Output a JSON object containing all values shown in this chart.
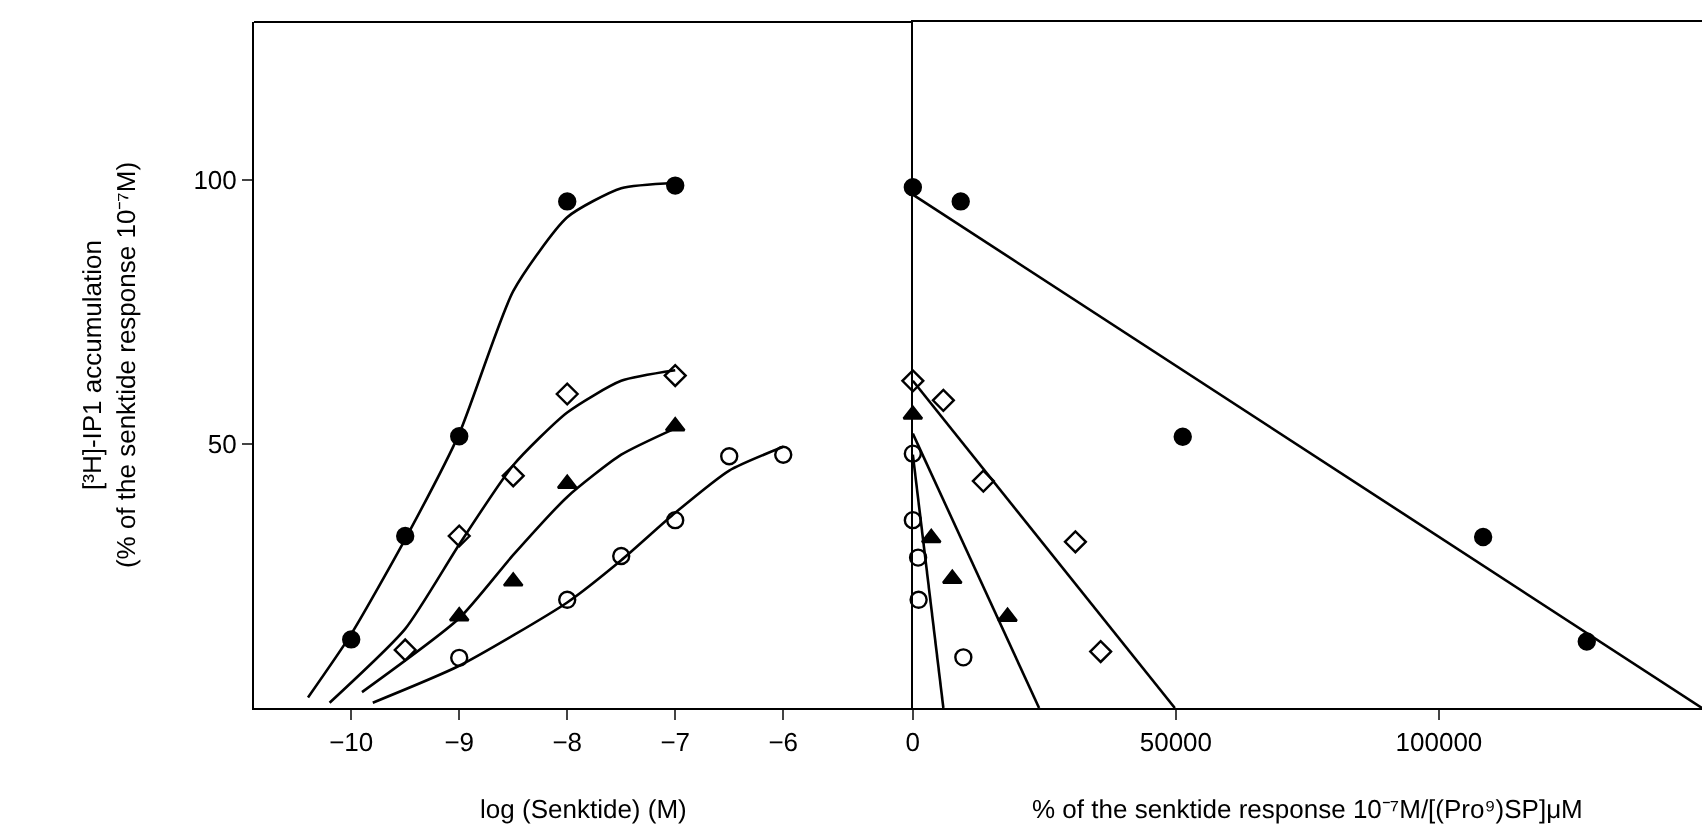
{
  "chart_data": [
    {
      "type": "line",
      "xlabel": "log (Senktide) (M)",
      "ylabel": "[³H]-IP1 accumulation\n(% of the senktide response 10⁻⁷M)",
      "xlim": [
        -10.9,
        -4.8
      ],
      "xticks": [
        -10,
        -9,
        -8,
        -7,
        -6
      ],
      "ylim": [
        0,
        130
      ],
      "yticks": [
        50,
        100
      ],
      "series": [
        {
          "type": "scatter",
          "marker": "circle",
          "color": "#000000",
          "x": [
            -10,
            -9.5,
            -9,
            -8,
            -7
          ],
          "values": [
            13,
            32.6,
            51.5,
            96,
            99
          ]
        },
        {
          "type": "scatter",
          "marker": "diamond",
          "color": "#ffffff",
          "x": [
            -9.5,
            -9,
            -8.5,
            -8,
            -7
          ],
          "values": [
            11,
            32.6,
            44,
            59.5,
            63
          ]
        },
        {
          "type": "scatter",
          "marker": "triangle",
          "color": "#000000",
          "x": [
            -9,
            -8.5,
            -8,
            -7
          ],
          "values": [
            17.4,
            24,
            42.5,
            53.4
          ]
        },
        {
          "type": "scatter",
          "marker": "circle",
          "color": "#ffffff",
          "x": [
            -9,
            -8,
            -7.5,
            -7,
            -6.5,
            -6
          ],
          "values": [
            9.5,
            20.5,
            28.8,
            35.6,
            47.7,
            48
          ]
        },
        {
          "color": "#000000",
          "x": [
            -10.4,
            -10,
            -9.5,
            -9,
            -8.5,
            -8,
            -7.5,
            -7
          ],
          "values": [
            2,
            14,
            32,
            52,
            79,
            93,
            98.5,
            99.5
          ]
        },
        {
          "color": "#000000",
          "x": [
            -10.2,
            -9.5,
            -9,
            -8.5,
            -8,
            -7.5,
            -7
          ],
          "values": [
            1,
            15,
            31,
            46,
            56,
            62,
            64
          ]
        },
        {
          "color": "#000000",
          "x": [
            -9.9,
            -9,
            -8.5,
            -8,
            -7.5,
            -7
          ],
          "values": [
            3,
            17,
            29,
            40,
            48,
            53
          ]
        },
        {
          "color": "#000000",
          "x": [
            -9.8,
            -9,
            -8,
            -7.5,
            -7,
            -6.5,
            -6
          ],
          "values": [
            1,
            8,
            20,
            28,
            37,
            45,
            49.5
          ]
        }
      ]
    },
    {
      "type": "line",
      "xlabel": "% of the senktide response 10⁻⁷M/[(Pro⁹)SP]μM",
      "xlim": [
        0,
        150000
      ],
      "xticks": [
        0,
        50000,
        100000
      ],
      "ylim": [
        0,
        130
      ],
      "tick_labels": "x",
      "series": [
        {
          "type": "scatter",
          "marker": "circle",
          "color": "#000000",
          "x": [
            0,
            9100,
            51300,
            108400,
            128100
          ],
          "values": [
            98.7,
            96,
            51.4,
            32.4,
            12.6
          ]
        },
        {
          "type": "scatter",
          "marker": "diamond",
          "color": "#ffffff",
          "x": [
            0,
            5800,
            13400,
            30900,
            35700
          ],
          "values": [
            62,
            58.3,
            43,
            31.5,
            10.7
          ]
        },
        {
          "type": "scatter",
          "marker": "triangle",
          "color": "#000000",
          "x": [
            0,
            3500,
            7500,
            18000
          ],
          "values": [
            55.6,
            32.2,
            24.5,
            17.3
          ]
        },
        {
          "type": "scatter",
          "marker": "circle",
          "color": "#ffffff",
          "x": [
            0,
            0,
            1000,
            1100,
            9600
          ],
          "values": [
            48.2,
            35.6,
            28.5,
            20.5,
            9.6
          ]
        },
        {
          "color": "#000000",
          "x": [
            0,
            150000
          ],
          "values": [
            97.3,
            0
          ]
        },
        {
          "color": "#000000",
          "x": [
            0,
            49800
          ],
          "values": [
            62,
            0
          ]
        },
        {
          "color": "#000000",
          "x": [
            0,
            24000
          ],
          "values": [
            52,
            0
          ]
        },
        {
          "color": "#000000",
          "x": [
            0,
            5800
          ],
          "values": [
            48,
            0
          ]
        }
      ]
    }
  ]
}
